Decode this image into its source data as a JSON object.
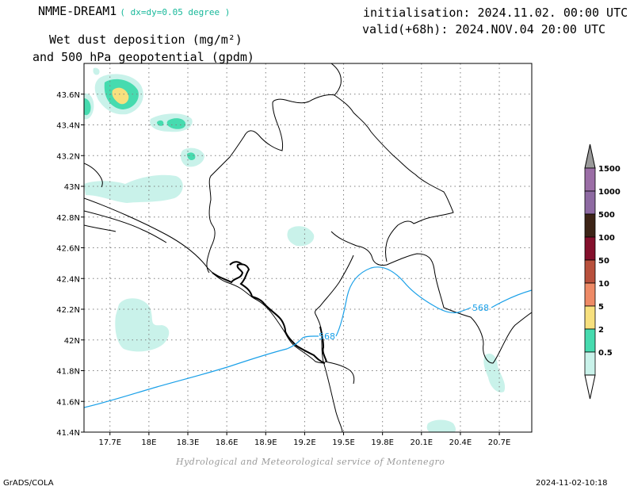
{
  "header": {
    "model_name": "NMME-DREAM1",
    "model_resolution": "( dx=dy=0.05 degree )",
    "product_line1": "Wet dust deposition (mg/m²)",
    "product_line2": "and 500 hPa geopotential (gpdm)",
    "init_line": "initialisation: 2024.11.02. 00:00 UTC",
    "valid_line": "valid(+68h): 2024.NOV.04 20:00 UTC"
  },
  "footer": {
    "credit": "Hydrological and Meteorological service of Montenegro",
    "software": "GrADS/COLA",
    "timestamp": "2024-11-02-10:18"
  },
  "map": {
    "lon_range": [
      17.5,
      20.95
    ],
    "lat_range": [
      41.4,
      43.8
    ],
    "lon_ticks": [
      "17.7E",
      "18E",
      "18.3E",
      "18.6E",
      "18.9E",
      "19.2E",
      "19.5E",
      "19.8E",
      "20.1E",
      "20.4E",
      "20.7E"
    ],
    "lat_ticks": [
      "41.4N",
      "41.6N",
      "41.8N",
      "42N",
      "42.2N",
      "42.4N",
      "42.6N",
      "42.8N",
      "43N",
      "43.2N",
      "43.4N",
      "43.6N"
    ],
    "contour_label": "568",
    "contour_color": "#1aa0e8"
  },
  "colorbar": {
    "levels": [
      {
        "label": "1500",
        "color": "#9b6ea6"
      },
      {
        "label": "1000",
        "color": "#8e6aa2"
      },
      {
        "label": "500",
        "color": "#3d2417"
      },
      {
        "label": "100",
        "color": "#84102c"
      },
      {
        "label": "50",
        "color": "#b8503c"
      },
      {
        "label": "10",
        "color": "#ee8a66"
      },
      {
        "label": "5",
        "color": "#f7e07e"
      },
      {
        "label": "2",
        "color": "#46dbaf"
      },
      {
        "label": "0.5",
        "color": "#c9f2ea"
      }
    ],
    "top_color": "#999999"
  }
}
